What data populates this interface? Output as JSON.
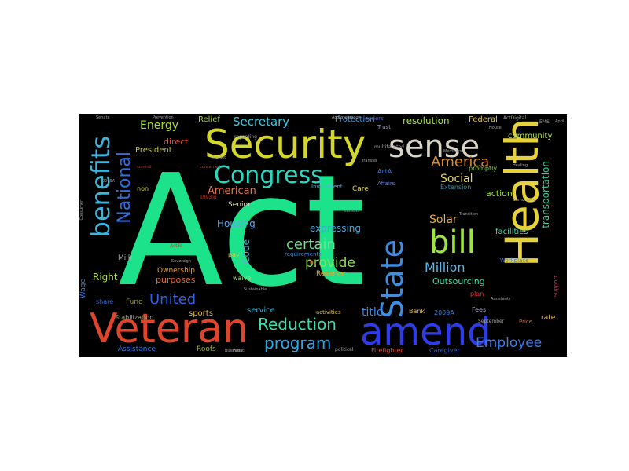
{
  "words": [
    {
      "text": "Act",
      "color": "#1ce28a"
    },
    {
      "text": "Security",
      "color": "#d4d62e"
    },
    {
      "text": "Health",
      "color": "#e8d23b"
    },
    {
      "text": "Veteran",
      "color": "#e0452b"
    },
    {
      "text": "amend",
      "color": "#2d3bea"
    },
    {
      "text": "sense",
      "color": "#d8d4c6"
    },
    {
      "text": "Congress",
      "color": "#28d8c0"
    },
    {
      "text": "bill",
      "color": "#9fe33e"
    },
    {
      "text": "benefits",
      "color": "#3bb6dd"
    },
    {
      "text": "State",
      "color": "#3c8ee6"
    },
    {
      "text": "National",
      "color": "#2f6fe0"
    },
    {
      "text": "program",
      "color": "#28a9e6"
    },
    {
      "text": "Reduction",
      "color": "#38e0b0"
    },
    {
      "text": "certain",
      "color": "#72e08a"
    },
    {
      "text": "United",
      "color": "#3260e6"
    },
    {
      "text": "America",
      "color": "#e08a28"
    },
    {
      "text": "Employee",
      "color": "#3c7ee8"
    },
    {
      "text": "provide",
      "color": "#8fe04a"
    },
    {
      "text": "Million",
      "color": "#58b6e8"
    },
    {
      "text": "Secretary",
      "color": "#3cc8e0"
    },
    {
      "text": "Energy",
      "color": "#a6e030"
    },
    {
      "text": "Social",
      "color": "#e8d26a"
    },
    {
      "text": "Solar",
      "color": "#e8b030"
    },
    {
      "text": "American",
      "color": "#e07850"
    },
    {
      "text": "title",
      "color": "#3c8ee6"
    },
    {
      "text": "expressing",
      "color": "#3ca8e0"
    },
    {
      "text": "resolution",
      "color": "#9ee040"
    },
    {
      "text": "transportation",
      "color": "#30d09a"
    },
    {
      "text": "Housing",
      "color": "#5fa6e8"
    },
    {
      "text": "Code",
      "color": "#4fb6c8"
    },
    {
      "text": "Outsourcing",
      "color": "#38e0a8"
    },
    {
      "text": "Right",
      "color": "#b8e048"
    },
    {
      "text": "purposes",
      "color": "#e06a30"
    },
    {
      "text": "service",
      "color": "#3cb8e0"
    },
    {
      "text": "sports",
      "color": "#e0c04a"
    },
    {
      "text": "Federal",
      "color": "#e0c850"
    },
    {
      "text": "direct",
      "color": "#e04a30"
    },
    {
      "text": "action",
      "color": "#9ee040"
    },
    {
      "text": "facilities",
      "color": "#58d0b0"
    },
    {
      "text": "community",
      "color": "#b0e048"
    },
    {
      "text": "Protection",
      "color": "#3ca0e0"
    },
    {
      "text": "Relief",
      "color": "#a6d048"
    },
    {
      "text": "President",
      "color": "#c0c040"
    },
    {
      "text": "Senior",
      "color": "#d8d8c0"
    },
    {
      "text": "Ownership",
      "color": "#e0a040"
    },
    {
      "text": "Reserve",
      "color": "#e0a838"
    },
    {
      "text": "Care",
      "color": "#e0d850"
    },
    {
      "text": "Fund",
      "color": "#a0a040"
    },
    {
      "text": "Milk",
      "color": "#a8a8a8"
    },
    {
      "text": "Wage",
      "color": "#3c7ee0"
    },
    {
      "text": "Assistance",
      "color": "#3c7ee0"
    },
    {
      "text": "Roofs",
      "color": "#a0b040"
    },
    {
      "text": "Stabilization",
      "color": "#a0a078"
    },
    {
      "text": "share",
      "color": "#3c6ee0"
    },
    {
      "text": "rate",
      "color": "#e0c040"
    },
    {
      "text": "Bank",
      "color": "#e0c040"
    },
    {
      "text": "2009A",
      "color": "#3c7ee0"
    },
    {
      "text": "Fees",
      "color": "#a8a8d0"
    },
    {
      "text": "plan",
      "color": "#e04030"
    },
    {
      "text": "Price",
      "color": "#e06030"
    },
    {
      "text": "Support",
      "color": "#b04060"
    },
    {
      "text": "Firefighter",
      "color": "#e05028"
    },
    {
      "text": "Caregiver",
      "color": "#3c60c0"
    },
    {
      "text": "waive",
      "color": "#a0e080"
    },
    {
      "text": "Extension",
      "color": "#3c90a0"
    },
    {
      "text": "Investment",
      "color": "#50b0e0"
    },
    {
      "text": "ActA",
      "color": "#3c7ee0"
    },
    {
      "text": "promptly",
      "color": "#90d060"
    },
    {
      "text": "non",
      "color": "#d0d048"
    },
    {
      "text": "pay",
      "color": "#d0d048"
    },
    {
      "text": "requirements",
      "color": "#3c90e0"
    },
    {
      "text": "activities",
      "color": "#e0c040"
    },
    {
      "text": "political",
      "color": "#a0a0a0"
    },
    {
      "text": "Trust",
      "color": "#a0a0c0"
    },
    {
      "text": "leaders",
      "color": "#6060c0"
    },
    {
      "text": "regarding",
      "color": "#a0a0a0"
    },
    {
      "text": "Affairs",
      "color": "#7080e0"
    },
    {
      "text": "multifaceted",
      "color": "#a0a0a0"
    },
    {
      "text": "ActDigital",
      "color": "#a0a0a0"
    },
    {
      "text": "EMS",
      "color": "#a0a0a0"
    },
    {
      "text": "Workplace",
      "color": "#3c7ee0"
    },
    {
      "text": "September",
      "color": "#a0a0a0"
    },
    {
      "text": "ActEmergency",
      "color": "#a0a0a0"
    },
    {
      "text": "Prevention",
      "color": "#a0a0a0"
    },
    {
      "text": "Senate",
      "color": "#a0a0a0"
    },
    {
      "text": "Members",
      "color": "#a0a0a0"
    },
    {
      "text": "Healing",
      "color": "#a0a0a0"
    },
    {
      "text": "Democracy",
      "color": "#a0a0a0"
    },
    {
      "text": "Transfer",
      "color": "#a0a0a0"
    },
    {
      "text": "Transition",
      "color": "#a0a0a0"
    },
    {
      "text": "citizens",
      "color": "#a0a0a0"
    },
    {
      "text": "Market",
      "color": "#a0a0a0"
    },
    {
      "text": "Consumer",
      "color": "#a0a0a0"
    },
    {
      "text": "2009A",
      "color": "#a0a0a0"
    },
    {
      "text": "summit",
      "color": "#c04030"
    },
    {
      "text": "concerned",
      "color": "#c04030"
    },
    {
      "text": "1993To",
      "color": "#c04030"
    },
    {
      "text": "ActTo",
      "color": "#c04030"
    },
    {
      "text": "Sovereign",
      "color": "#a0a0a0"
    },
    {
      "text": "Sustainable",
      "color": "#a0a0a0"
    },
    {
      "text": "Business",
      "color": "#a0a0a0"
    },
    {
      "text": "Public",
      "color": "#a0a0a0"
    },
    {
      "text": "Big",
      "color": "#c04030"
    },
    {
      "text": "House",
      "color": "#a0a0a0"
    },
    {
      "text": "April",
      "color": "#a0a0a0"
    },
    {
      "text": "Assistants",
      "color": "#a0a0a0"
    }
  ]
}
